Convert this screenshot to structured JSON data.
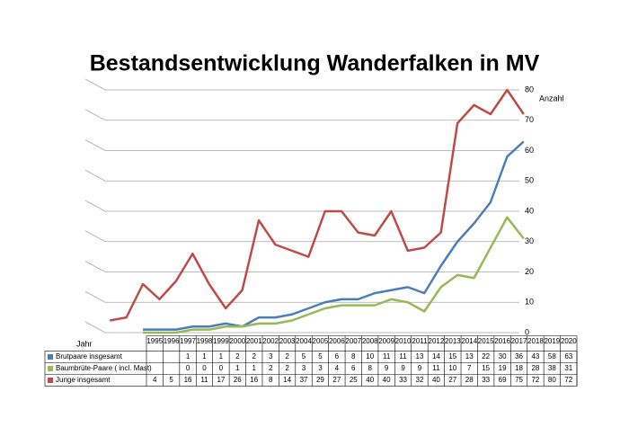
{
  "chart_data": {
    "type": "line",
    "title": "Bestandsentwicklung Wanderfalken in MV",
    "y_label": "Anzahl",
    "x_label": "Jahr",
    "categories": [
      "1995",
      "1996",
      "1997",
      "1998",
      "1999",
      "2000",
      "2001",
      "2002",
      "2003",
      "2004",
      "2005",
      "2006",
      "2007",
      "2008",
      "2009",
      "2010",
      "2011",
      "2012",
      "2013",
      "2014",
      "2015",
      "2016",
      "2017",
      "2018",
      "2019",
      "2020"
    ],
    "series": [
      {
        "name": "Brutpaare insgesamt",
        "color": "#4a7ebb",
        "values": [
          null,
          null,
          1,
          1,
          1,
          2,
          2,
          3,
          2,
          5,
          5,
          6,
          8,
          10,
          11,
          11,
          13,
          14,
          15,
          13,
          22,
          30,
          36,
          43,
          58,
          63
        ]
      },
      {
        "name": "Baumbrüte-Paare ( incl. Mast)",
        "color": "#98b954",
        "values": [
          null,
          null,
          0,
          0,
          0,
          1,
          1,
          2,
          2,
          3,
          3,
          4,
          6,
          8,
          9,
          9,
          9,
          11,
          10,
          7,
          15,
          19,
          18,
          28,
          38,
          31
        ]
      },
      {
        "name": "Junge insgesamt",
        "color": "#be4b48",
        "values": [
          4,
          5,
          16,
          11,
          17,
          26,
          16,
          8,
          14,
          37,
          29,
          27,
          25,
          40,
          40,
          33,
          32,
          40,
          27,
          28,
          33,
          69,
          75,
          72,
          80,
          72
        ]
      }
    ],
    "ylim": [
      0,
      80
    ],
    "yticks": [
      0,
      10,
      20,
      30,
      40,
      50,
      60,
      70,
      80
    ],
    "grid": true
  }
}
